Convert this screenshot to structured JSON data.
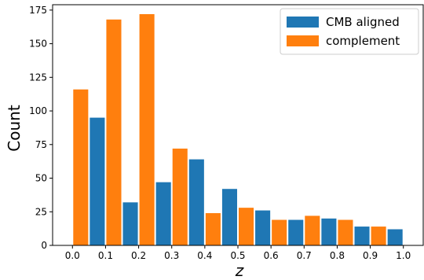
{
  "chart_data": {
    "type": "bar",
    "xlabel": "z",
    "ylabel": "Count",
    "xlim": [
      -0.06,
      1.06
    ],
    "ylim": [
      0,
      179
    ],
    "x_ticks": [
      "0.0",
      "0.1",
      "0.2",
      "0.3",
      "0.4",
      "0.5",
      "0.6",
      "0.7",
      "0.8",
      "0.9",
      "1.0"
    ],
    "y_ticks": [
      "0",
      "25",
      "50",
      "75",
      "100",
      "125",
      "150",
      "175"
    ],
    "bin_width": 0.1,
    "bin_starts": [
      0.0,
      0.1,
      0.2,
      0.3,
      0.4,
      0.5,
      0.6,
      0.7,
      0.8,
      0.9
    ],
    "series": [
      {
        "name": "CMB aligned",
        "color": "#1f77b4",
        "values": [
          95,
          32,
          47,
          64,
          42,
          26,
          19,
          20,
          14,
          12
        ]
      },
      {
        "name": "complement",
        "color": "#ff7f0e",
        "values": [
          116,
          168,
          172,
          72,
          24,
          28,
          19,
          22,
          19,
          14
        ]
      }
    ],
    "legend_position": "top-right",
    "grid": false
  }
}
